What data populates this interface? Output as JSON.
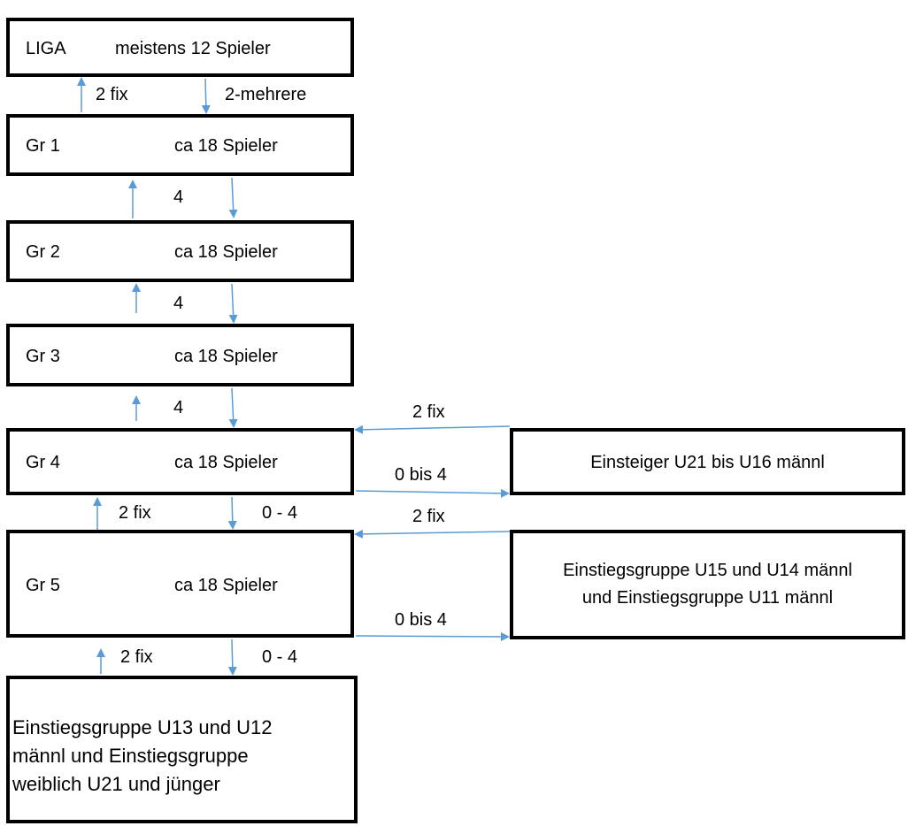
{
  "colors": {
    "arrow": "#5b9bd5",
    "border": "#000000",
    "text": "#000000"
  },
  "liga": {
    "name": "LIGA",
    "players": "meistens 12 Spieler"
  },
  "groups": [
    {
      "name": "Gr 1",
      "players": "ca 18 Spieler"
    },
    {
      "name": "Gr 2",
      "players": "ca 18 Spieler"
    },
    {
      "name": "Gr 3",
      "players": "ca 18 Spieler"
    },
    {
      "name": "Gr 4",
      "players": "ca 18 Spieler"
    },
    {
      "name": "Gr 5",
      "players": "ca 18 Spieler"
    }
  ],
  "entry_boxes": {
    "u21_u16": "Einsteiger U21 bis U16 männl",
    "u15_u14_line1": "Einstiegsgruppe U15 und U14 männl",
    "u15_u14_line2": "und Einstiegsgruppe U11 männl",
    "u13_u12_line1": "Einstiegsgruppe U13 und U12",
    "u13_u12_line2": "männl und Einstiegsgruppe",
    "u13_u12_line3": "weiblich U21 und jünger"
  },
  "labels": {
    "liga_up": "2 fix",
    "liga_down": "2-mehrere",
    "gr1_gr2": "4",
    "gr2_gr3": "4",
    "gr3_gr4": "4",
    "gr4_gr5_up": "2 fix",
    "gr4_gr5_down": "0 - 4",
    "gr5_entry_up": "2 fix",
    "gr5_entry_down": "0 - 4",
    "u21_to_gr4": "2 fix",
    "gr4_to_u21": "0  bis 4",
    "u15_to_gr5": "2 fix",
    "gr5_to_u15": "0  bis 4"
  }
}
